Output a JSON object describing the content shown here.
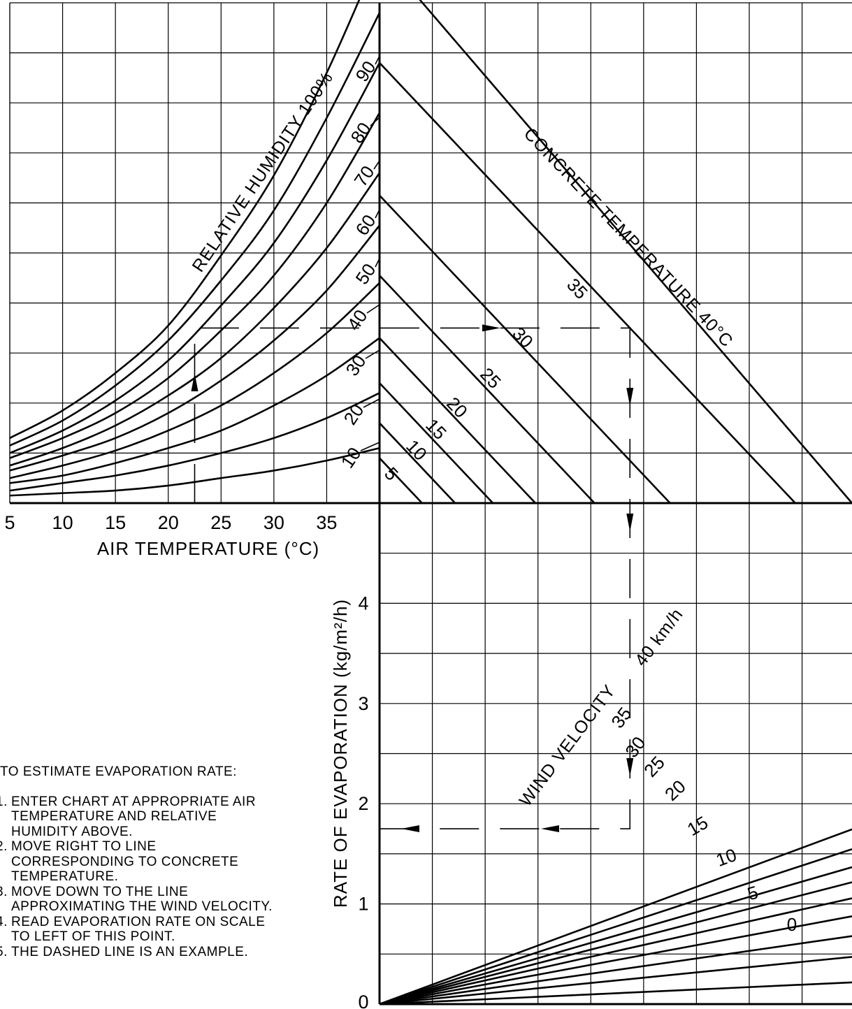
{
  "chart_data": [
    {
      "type": "line",
      "panel": "top-left",
      "xlabel": "AIR TEMPERATURE (°C)",
      "x_ticks": [
        5,
        10,
        15,
        20,
        25,
        30,
        35
      ],
      "xlim": [
        5,
        40
      ],
      "series_label": "RELATIVE HUMIDITY 100%",
      "series": [
        {
          "name": "100%",
          "values": [
            1.3,
            1.85,
            2.6,
            3.55,
            4.95,
            6.55,
            8.6,
            11.0
          ]
        },
        {
          "name": "90",
          "values": [
            1.15,
            1.65,
            2.35,
            3.25,
            4.45,
            5.85,
            7.7,
            9.8
          ]
        },
        {
          "name": "80",
          "values": [
            1.0,
            1.45,
            2.05,
            2.85,
            3.95,
            5.2,
            6.85,
            8.8
          ]
        },
        {
          "name": "70",
          "values": [
            0.9,
            1.3,
            1.8,
            2.5,
            3.45,
            4.55,
            6.0,
            7.8
          ]
        },
        {
          "name": "60",
          "values": [
            0.75,
            1.1,
            1.55,
            2.15,
            2.9,
            3.9,
            5.1,
            6.6
          ]
        },
        {
          "name": "50",
          "values": [
            0.65,
            0.95,
            1.3,
            1.8,
            2.45,
            3.25,
            4.25,
            5.55
          ]
        },
        {
          "name": "40",
          "values": [
            0.5,
            0.75,
            1.05,
            1.45,
            1.95,
            2.6,
            3.4,
            4.4
          ]
        },
        {
          "name": "30",
          "values": [
            0.4,
            0.55,
            0.8,
            1.1,
            1.45,
            1.95,
            2.55,
            3.3
          ]
        },
        {
          "name": "20",
          "values": [
            0.25,
            0.4,
            0.55,
            0.75,
            1.0,
            1.3,
            1.7,
            2.2
          ]
        },
        {
          "name": "10",
          "values": [
            0.15,
            0.2,
            0.25,
            0.35,
            0.5,
            0.65,
            0.85,
            1.1
          ]
        }
      ],
      "x": [
        5,
        10,
        15,
        20,
        25,
        30,
        35,
        40
      ],
      "humidity_labels": [
        "RELATIVE HUMIDITY 100%",
        "90",
        "80",
        "70",
        "60",
        "50",
        "40",
        "30",
        "20",
        "10"
      ]
    },
    {
      "type": "line",
      "panel": "top-right",
      "series_label": "CONCRETE TEMPERATURE 40°C",
      "series": [
        {
          "name": "40°C",
          "start": 11.0
        },
        {
          "name": "35",
          "start": 8.8
        },
        {
          "name": "30",
          "start": 6.15
        },
        {
          "name": "25",
          "start": 4.55
        },
        {
          "name": "20",
          "start": 3.3
        },
        {
          "name": "15",
          "start": 2.4
        },
        {
          "name": "10",
          "start": 1.6
        },
        {
          "name": "5",
          "start": 0.9
        }
      ],
      "temp_labels": [
        "CONCRETE TEMPERATURE 40°C",
        "35",
        "30",
        "25",
        "20",
        "15",
        "10",
        "5"
      ]
    },
    {
      "type": "line",
      "panel": "bottom-right",
      "ylabel": "RATE OF EVAPORATION (kg/m²/h)",
      "y_ticks": [
        0,
        1,
        2,
        3,
        4
      ],
      "ylim": [
        0,
        5
      ],
      "series_label": "WIND VELOCITY 40 km/h",
      "series": [
        {
          "name": "40 km/h",
          "slope": 1.85
        },
        {
          "name": "35",
          "slope": 1.64
        },
        {
          "name": "30",
          "slope": 1.45
        },
        {
          "name": "25",
          "slope": 1.29
        },
        {
          "name": "20",
          "slope": 1.12
        },
        {
          "name": "15",
          "slope": 0.93
        },
        {
          "name": "10",
          "slope": 0.72
        },
        {
          "name": "5",
          "slope": 0.5
        },
        {
          "name": "0",
          "slope": 0.23
        }
      ],
      "wind_labels": [
        "WIND VELOCITY",
        "40 km/h",
        "35",
        "30",
        "25",
        "20",
        "15",
        "10",
        "5",
        "0"
      ]
    }
  ],
  "example": {
    "air_temperature": 22.5,
    "relative_humidity": 40,
    "concrete_temperature": 35,
    "wind_velocity": 30,
    "evaporation_rate": 1.75
  },
  "instructions": {
    "heading": "TO ESTIMATE EVAPORATION RATE:",
    "steps": [
      {
        "num": "1.",
        "text": "ENTER CHART AT APPROPRIATE AIR\nTEMPERATURE AND RELATIVE\nHUMIDITY ABOVE."
      },
      {
        "num": "2.",
        "text": "MOVE RIGHT TO LINE\nCORRESPONDING TO CONCRETE\nTEMPERATURE."
      },
      {
        "num": "3.",
        "text": "MOVE DOWN TO THE LINE\nAPPROXIMATING THE WIND VELOCITY."
      },
      {
        "num": "4.",
        "text": "READ EVAPORATION RATE ON SCALE\nTO LEFT OF THIS POINT."
      },
      {
        "num": "5.",
        "text": "THE DASHED LINE IS AN EXAMPLE."
      }
    ]
  }
}
